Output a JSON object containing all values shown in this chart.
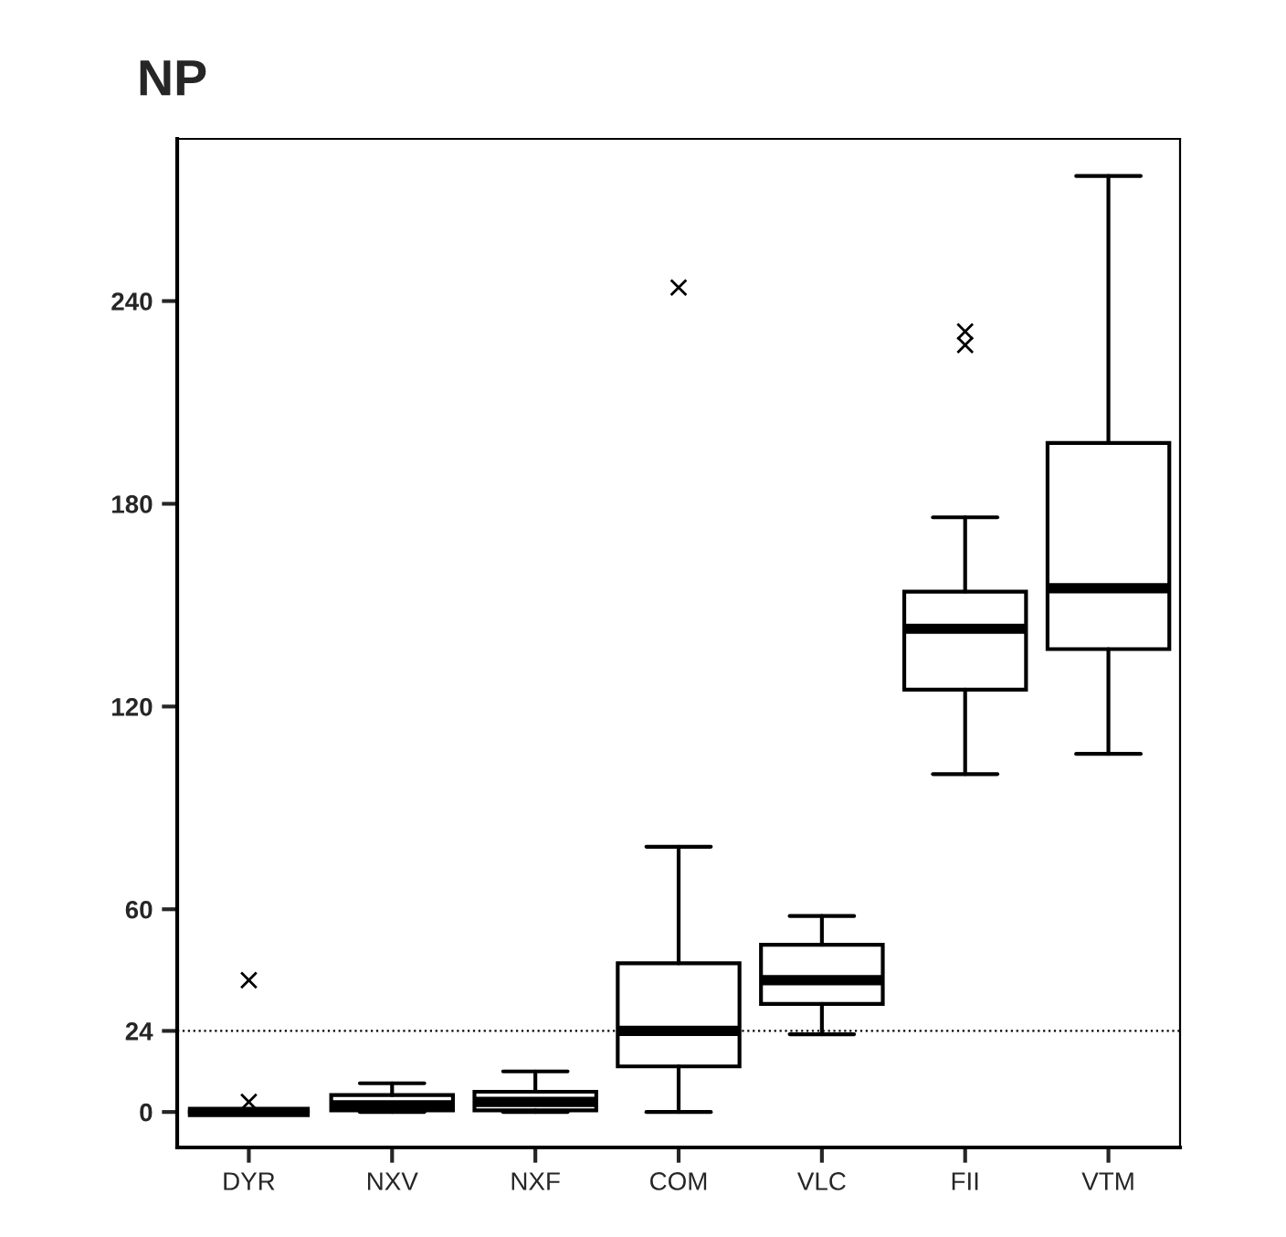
{
  "chart_data": {
    "type": "box",
    "title": "NP",
    "categories": [
      "DYR",
      "NXV",
      "NXF",
      "COM",
      "VLC",
      "FII",
      "VTM"
    ],
    "boxes": [
      {
        "low": 0,
        "q1": 0,
        "median": 0,
        "q3": 0,
        "high": 0,
        "outliers": [
          3,
          39
        ]
      },
      {
        "low": 0,
        "q1": 0.5,
        "median": 2,
        "q3": 5,
        "high": 8.5
      },
      {
        "low": 0,
        "q1": 0.5,
        "median": 3,
        "q3": 6,
        "high": 12
      },
      {
        "low": 0,
        "q1": 13.5,
        "median": 24,
        "q3": 44,
        "high": 78.5,
        "outliers": [
          244
        ]
      },
      {
        "low": 23,
        "q1": 32,
        "median": 39,
        "q3": 49.5,
        "high": 58
      },
      {
        "low": 100,
        "q1": 125,
        "median": 143,
        "q3": 154,
        "high": 176,
        "outliers": [
          227,
          231
        ]
      },
      {
        "low": 106,
        "q1": 137,
        "median": 155,
        "q3": 198,
        "high": 277
      }
    ],
    "ylim": [
      -10.5,
      288
    ],
    "yticks": [
      0,
      24,
      60,
      120,
      180,
      240
    ],
    "ref_lines": [
      {
        "axis": "y",
        "value": 24,
        "line_style": "dotted"
      }
    ],
    "marker": "cross",
    "grid": false
  }
}
